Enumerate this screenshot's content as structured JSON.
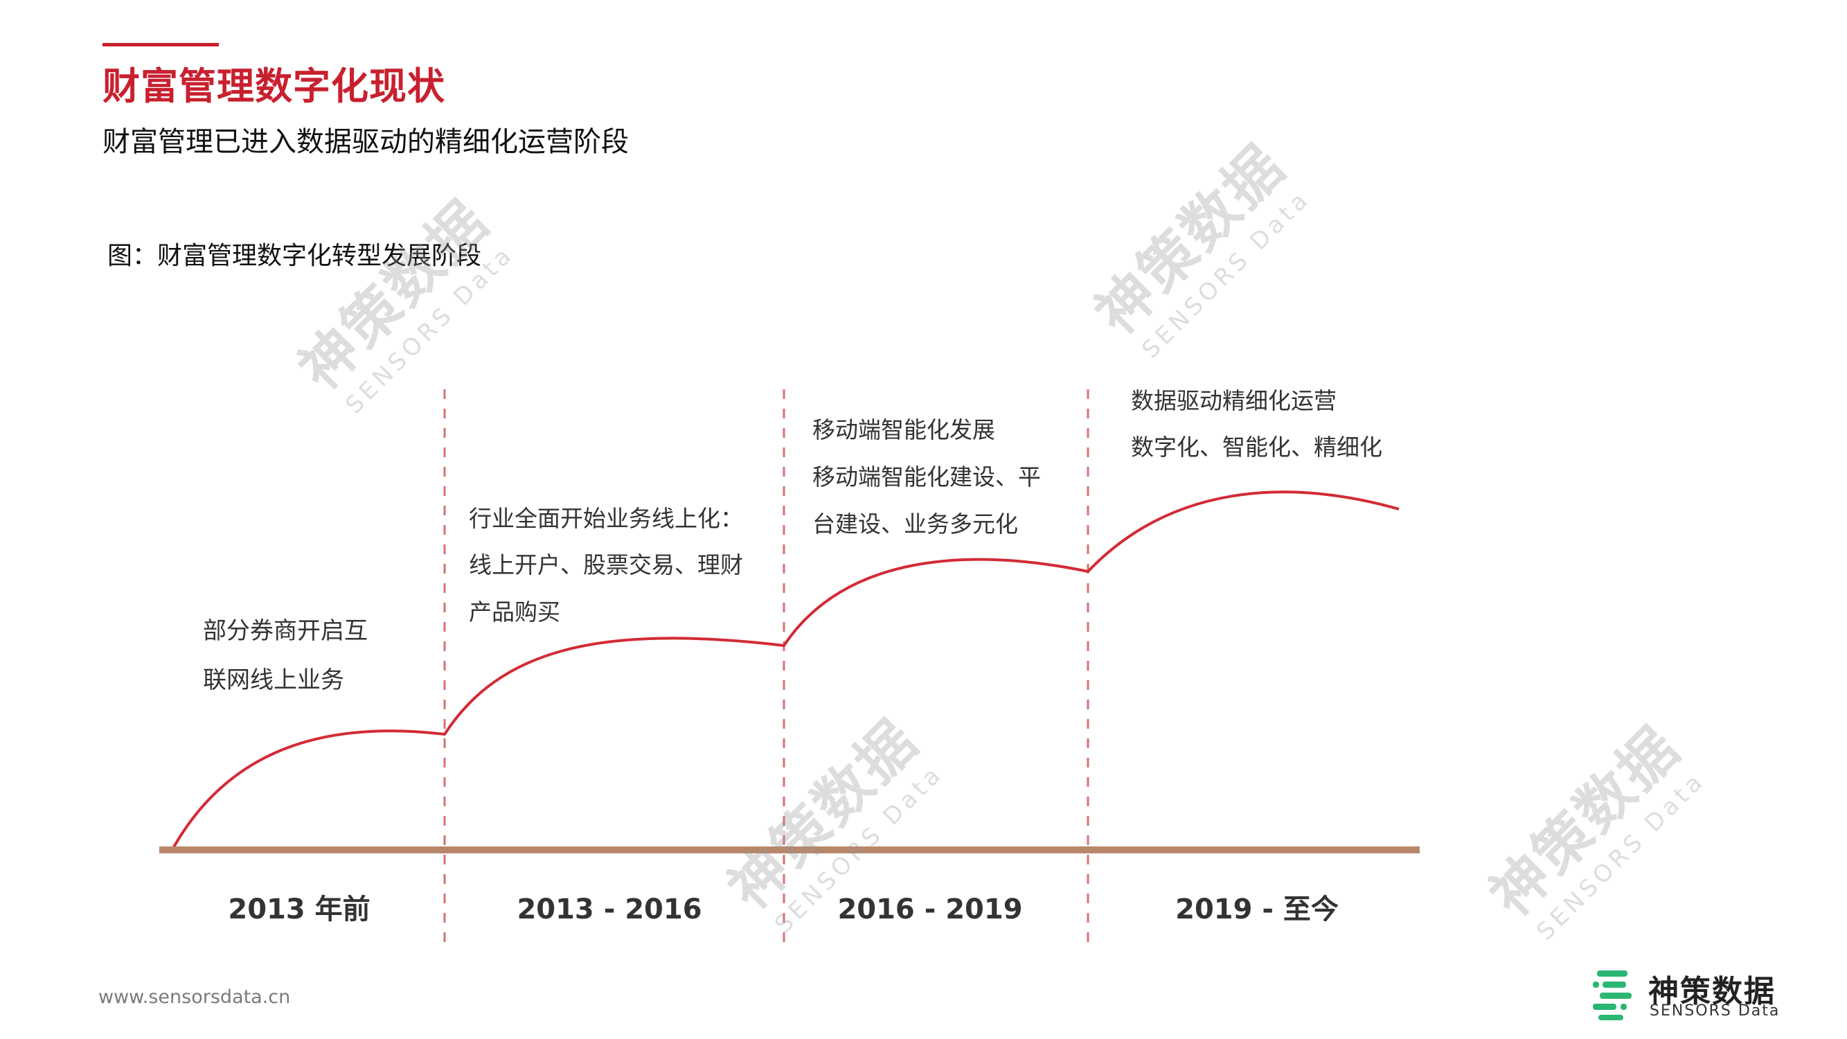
{
  "header": {
    "title": "财富管理数字化现状",
    "subtitle": "财富管理已进入数据驱动的精细化运营阶段"
  },
  "figure": {
    "caption": "图：财富管理数字化转型发展阶段",
    "stages": [
      {
        "period": "2013 年前",
        "lines": [
          "部分券商开启互",
          "联网线上业务"
        ]
      },
      {
        "period": "2013 - 2016",
        "lines": [
          "行业全面开始业务线上化：",
          "线上开户、股票交易、理财",
          "产品购买"
        ]
      },
      {
        "period": "2016 - 2019",
        "lines": [
          "移动端智能化发展",
          "移动端智能化建设、平",
          "台建设、业务多元化"
        ]
      },
      {
        "period": "2019 - 至今",
        "lines": [
          "数据驱动精细化运营",
          "数字化、智能化、精细化"
        ]
      }
    ]
  },
  "watermark": {
    "cn": "神策数据",
    "en": "SENSORS Data"
  },
  "footer": {
    "url": "www.sensorsdata.cn"
  },
  "logo": {
    "cn": "神策数据",
    "en": "SENSORS Data"
  },
  "colors": {
    "accent": "#c8202f",
    "curve": "#d22b36",
    "baseline": "#b8876a",
    "divider": "#d77070",
    "logo_green": "#2bb673"
  }
}
